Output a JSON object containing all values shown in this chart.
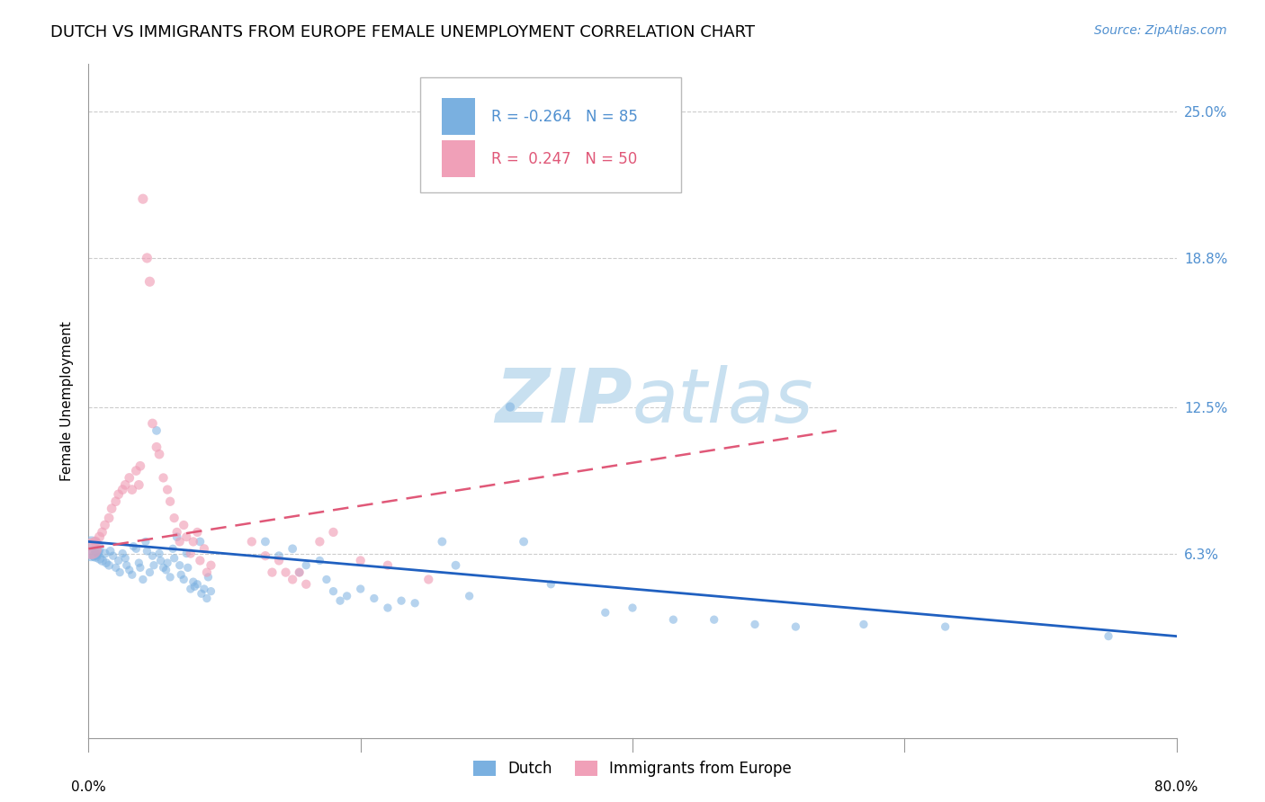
{
  "title": "DUTCH VS IMMIGRANTS FROM EUROPE FEMALE UNEMPLOYMENT CORRELATION CHART",
  "source": "Source: ZipAtlas.com",
  "ylabel": "Female Unemployment",
  "ytick_labels": [
    "25.0%",
    "18.8%",
    "12.5%",
    "6.3%"
  ],
  "ytick_values": [
    0.25,
    0.188,
    0.125,
    0.063
  ],
  "xmin": 0.0,
  "xmax": 0.8,
  "ymin": -0.015,
  "ymax": 0.27,
  "legend_dutch_R": "-0.264",
  "legend_dutch_N": "85",
  "legend_europe_R": "0.247",
  "legend_europe_N": "50",
  "dutch_color": "#7ab0e0",
  "europe_color": "#f0a0b8",
  "trendline_dutch_color": "#2060c0",
  "trendline_europe_color": "#e05878",
  "background_color": "#ffffff",
  "grid_color": "#cccccc",
  "watermark_color": "#c8e0f0",
  "right_axis_color": "#5090d0",
  "title_fontsize": 13,
  "axis_label_fontsize": 11,
  "tick_fontsize": 11,
  "source_fontsize": 10,
  "dutch_trendline": [
    0.0,
    0.8,
    0.068,
    0.028
  ],
  "europe_trendline": [
    0.0,
    0.55,
    0.065,
    0.115
  ],
  "dutch_points": [
    [
      0.002,
      0.065,
      400
    ],
    [
      0.004,
      0.063,
      120
    ],
    [
      0.005,
      0.062,
      90
    ],
    [
      0.006,
      0.064,
      80
    ],
    [
      0.008,
      0.061,
      70
    ],
    [
      0.01,
      0.06,
      60
    ],
    [
      0.012,
      0.063,
      55
    ],
    [
      0.013,
      0.059,
      50
    ],
    [
      0.015,
      0.058,
      50
    ],
    [
      0.016,
      0.064,
      50
    ],
    [
      0.018,
      0.062,
      45
    ],
    [
      0.02,
      0.057,
      45
    ],
    [
      0.022,
      0.06,
      45
    ],
    [
      0.023,
      0.055,
      45
    ],
    [
      0.025,
      0.063,
      45
    ],
    [
      0.027,
      0.061,
      45
    ],
    [
      0.028,
      0.058,
      45
    ],
    [
      0.03,
      0.056,
      45
    ],
    [
      0.032,
      0.054,
      45
    ],
    [
      0.033,
      0.066,
      45
    ],
    [
      0.035,
      0.065,
      45
    ],
    [
      0.037,
      0.059,
      45
    ],
    [
      0.038,
      0.057,
      45
    ],
    [
      0.04,
      0.052,
      45
    ],
    [
      0.042,
      0.068,
      45
    ],
    [
      0.043,
      0.064,
      45
    ],
    [
      0.045,
      0.055,
      45
    ],
    [
      0.047,
      0.062,
      45
    ],
    [
      0.048,
      0.058,
      45
    ],
    [
      0.05,
      0.115,
      50
    ],
    [
      0.052,
      0.063,
      45
    ],
    [
      0.053,
      0.06,
      45
    ],
    [
      0.055,
      0.057,
      45
    ],
    [
      0.057,
      0.056,
      45
    ],
    [
      0.058,
      0.059,
      45
    ],
    [
      0.06,
      0.053,
      45
    ],
    [
      0.062,
      0.065,
      45
    ],
    [
      0.063,
      0.061,
      45
    ],
    [
      0.065,
      0.07,
      50
    ],
    [
      0.067,
      0.058,
      45
    ],
    [
      0.068,
      0.054,
      45
    ],
    [
      0.07,
      0.052,
      45
    ],
    [
      0.072,
      0.063,
      45
    ],
    [
      0.073,
      0.057,
      45
    ],
    [
      0.075,
      0.048,
      45
    ],
    [
      0.077,
      0.051,
      45
    ],
    [
      0.078,
      0.049,
      45
    ],
    [
      0.08,
      0.05,
      45
    ],
    [
      0.082,
      0.068,
      50
    ],
    [
      0.083,
      0.046,
      45
    ],
    [
      0.085,
      0.048,
      45
    ],
    [
      0.087,
      0.044,
      45
    ],
    [
      0.088,
      0.053,
      45
    ],
    [
      0.09,
      0.047,
      45
    ],
    [
      0.13,
      0.068,
      50
    ],
    [
      0.14,
      0.062,
      50
    ],
    [
      0.15,
      0.065,
      50
    ],
    [
      0.155,
      0.055,
      45
    ],
    [
      0.16,
      0.058,
      45
    ],
    [
      0.17,
      0.06,
      45
    ],
    [
      0.175,
      0.052,
      45
    ],
    [
      0.18,
      0.047,
      45
    ],
    [
      0.185,
      0.043,
      45
    ],
    [
      0.19,
      0.045,
      45
    ],
    [
      0.2,
      0.048,
      45
    ],
    [
      0.21,
      0.044,
      45
    ],
    [
      0.22,
      0.04,
      45
    ],
    [
      0.23,
      0.043,
      45
    ],
    [
      0.24,
      0.042,
      45
    ],
    [
      0.26,
      0.068,
      50
    ],
    [
      0.27,
      0.058,
      50
    ],
    [
      0.28,
      0.045,
      45
    ],
    [
      0.31,
      0.125,
      55
    ],
    [
      0.32,
      0.068,
      50
    ],
    [
      0.34,
      0.05,
      45
    ],
    [
      0.38,
      0.038,
      45
    ],
    [
      0.4,
      0.04,
      45
    ],
    [
      0.43,
      0.035,
      45
    ],
    [
      0.46,
      0.035,
      45
    ],
    [
      0.49,
      0.033,
      45
    ],
    [
      0.52,
      0.032,
      45
    ],
    [
      0.57,
      0.033,
      45
    ],
    [
      0.63,
      0.032,
      45
    ],
    [
      0.75,
      0.028,
      45
    ]
  ],
  "europe_points": [
    [
      0.002,
      0.065,
      280
    ],
    [
      0.005,
      0.068,
      70
    ],
    [
      0.008,
      0.07,
      65
    ],
    [
      0.01,
      0.072,
      60
    ],
    [
      0.012,
      0.075,
      60
    ],
    [
      0.015,
      0.078,
      60
    ],
    [
      0.017,
      0.082,
      60
    ],
    [
      0.02,
      0.085,
      60
    ],
    [
      0.022,
      0.088,
      60
    ],
    [
      0.025,
      0.09,
      60
    ],
    [
      0.027,
      0.092,
      60
    ],
    [
      0.03,
      0.095,
      60
    ],
    [
      0.032,
      0.09,
      60
    ],
    [
      0.035,
      0.098,
      60
    ],
    [
      0.037,
      0.092,
      60
    ],
    [
      0.038,
      0.1,
      60
    ],
    [
      0.04,
      0.213,
      65
    ],
    [
      0.043,
      0.188,
      65
    ],
    [
      0.045,
      0.178,
      65
    ],
    [
      0.047,
      0.118,
      60
    ],
    [
      0.05,
      0.108,
      60
    ],
    [
      0.052,
      0.105,
      60
    ],
    [
      0.055,
      0.095,
      55
    ],
    [
      0.058,
      0.09,
      55
    ],
    [
      0.06,
      0.085,
      55
    ],
    [
      0.063,
      0.078,
      55
    ],
    [
      0.065,
      0.072,
      55
    ],
    [
      0.067,
      0.068,
      55
    ],
    [
      0.07,
      0.075,
      55
    ],
    [
      0.072,
      0.07,
      55
    ],
    [
      0.075,
      0.063,
      55
    ],
    [
      0.077,
      0.068,
      55
    ],
    [
      0.08,
      0.072,
      55
    ],
    [
      0.082,
      0.06,
      55
    ],
    [
      0.085,
      0.065,
      55
    ],
    [
      0.087,
      0.055,
      55
    ],
    [
      0.09,
      0.058,
      55
    ],
    [
      0.12,
      0.068,
      55
    ],
    [
      0.13,
      0.062,
      55
    ],
    [
      0.135,
      0.055,
      55
    ],
    [
      0.14,
      0.06,
      55
    ],
    [
      0.145,
      0.055,
      55
    ],
    [
      0.15,
      0.052,
      55
    ],
    [
      0.155,
      0.055,
      55
    ],
    [
      0.16,
      0.05,
      55
    ],
    [
      0.17,
      0.068,
      55
    ],
    [
      0.18,
      0.072,
      55
    ],
    [
      0.2,
      0.06,
      55
    ],
    [
      0.22,
      0.058,
      55
    ],
    [
      0.25,
      0.052,
      55
    ]
  ]
}
